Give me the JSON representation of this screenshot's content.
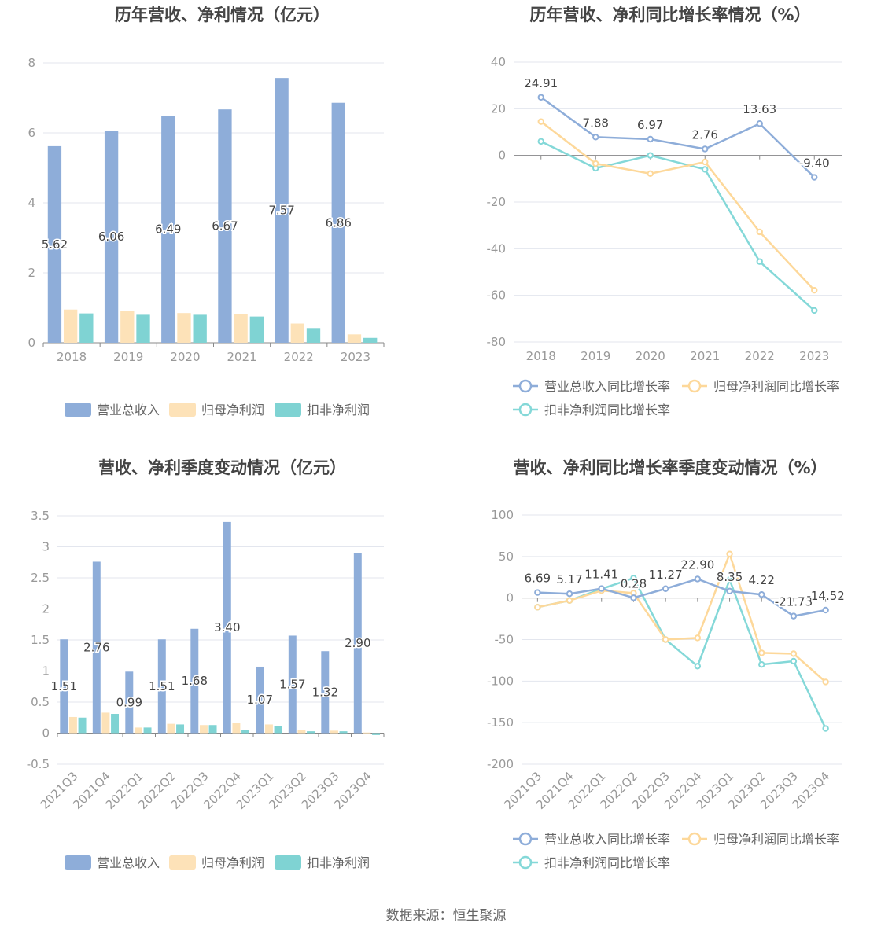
{
  "colors": {
    "revenue": "#8eadd9",
    "net_profit": "#fde2b8",
    "deducted_profit": "#7fd3d3",
    "revenue_line": "#8eadd9",
    "net_line": "#fdd89a",
    "deducted_line": "#84d8d8"
  },
  "footer": {
    "source": "数据来源：恒生聚源"
  },
  "chart_data": [
    {
      "id": "annual_values",
      "type": "bar",
      "title": "历年营收、净利情况（亿元）",
      "categories": [
        "2018",
        "2019",
        "2020",
        "2021",
        "2022",
        "2023"
      ],
      "series": [
        {
          "name": "营业总收入",
          "values": [
            5.62,
            6.06,
            6.49,
            6.67,
            7.57,
            6.86
          ]
        },
        {
          "name": "归母净利润",
          "values": [
            0.95,
            0.92,
            0.85,
            0.83,
            0.55,
            0.24
          ]
        },
        {
          "name": "扣非净利润",
          "values": [
            0.84,
            0.8,
            0.8,
            0.75,
            0.42,
            0.14
          ]
        }
      ],
      "data_labels": [
        "5.62",
        "6.06",
        "6.49",
        "6.67",
        "7.57",
        "6.86"
      ],
      "ylim": [
        0,
        8
      ],
      "yticks": [
        "0",
        "2",
        "4",
        "6",
        "8"
      ],
      "grid": true,
      "legend": "bottom"
    },
    {
      "id": "annual_growth",
      "type": "line",
      "title": "历年营收、净利同比增长率情况（%）",
      "categories": [
        "2018",
        "2019",
        "2020",
        "2021",
        "2022",
        "2023"
      ],
      "series": [
        {
          "name": "营业总收入同比增长率",
          "values": [
            24.91,
            7.88,
            6.97,
            2.76,
            13.63,
            -9.4
          ]
        },
        {
          "name": "归母净利润同比增长率",
          "values": [
            14.5,
            -3.5,
            -7.8,
            -2.8,
            -32.8,
            -57.8
          ]
        },
        {
          "name": "扣非净利润同比增长率",
          "values": [
            6.0,
            -5.5,
            0.0,
            -6.0,
            -45.5,
            -66.5
          ]
        }
      ],
      "data_labels": [
        "24.91",
        "7.88",
        "6.97",
        "2.76",
        "13.63",
        "-9.40"
      ],
      "ylim": [
        -80,
        40
      ],
      "yticks": [
        "-80",
        "-60",
        "-40",
        "-20",
        "0",
        "20",
        "40"
      ],
      "grid": true,
      "legend": "bottom"
    },
    {
      "id": "quarterly_values",
      "type": "bar",
      "title": "营收、净利季度变动情况（亿元）",
      "categories": [
        "2021Q3",
        "2021Q4",
        "2022Q1",
        "2022Q2",
        "2022Q3",
        "2022Q4",
        "2023Q1",
        "2023Q2",
        "2023Q3",
        "2023Q4"
      ],
      "series": [
        {
          "name": "营业总收入",
          "values": [
            1.51,
            2.76,
            0.99,
            1.51,
            1.68,
            3.4,
            1.07,
            1.57,
            1.32,
            2.9
          ]
        },
        {
          "name": "归母净利润",
          "values": [
            0.26,
            0.33,
            0.09,
            0.15,
            0.13,
            0.17,
            0.14,
            0.05,
            0.04,
            0.01
          ]
        },
        {
          "name": "扣非净利润",
          "values": [
            0.25,
            0.31,
            0.09,
            0.14,
            0.13,
            0.05,
            0.11,
            0.03,
            0.03,
            -0.03
          ]
        }
      ],
      "data_labels": [
        "1.51",
        "2.76",
        "0.99",
        "1.51",
        "1.68",
        "3.40",
        "1.07",
        "1.57",
        "1.32",
        "2.90"
      ],
      "ylim": [
        -0.5,
        3.5
      ],
      "yticks": [
        "-0.5",
        "0",
        "0.5",
        "1",
        "1.5",
        "2",
        "2.5",
        "3",
        "3.5"
      ],
      "grid": true,
      "legend": "bottom"
    },
    {
      "id": "quarterly_growth",
      "type": "line",
      "title": "营收、净利同比增长率季度变动情况（%）",
      "categories": [
        "2021Q3",
        "2021Q4",
        "2022Q1",
        "2022Q2",
        "2022Q3",
        "2022Q4",
        "2023Q1",
        "2023Q2",
        "2023Q3",
        "2023Q4"
      ],
      "series": [
        {
          "name": "营业总收入同比增长率",
          "values": [
            6.69,
            5.17,
            11.41,
            0.28,
            11.27,
            22.9,
            8.35,
            4.22,
            -21.73,
            -14.52
          ]
        },
        {
          "name": "归母净利润同比增长率",
          "values": [
            -11,
            -3,
            9,
            6,
            -50,
            -48,
            53,
            -66,
            -67,
            -101
          ]
        },
        {
          "name": "扣非净利润同比增长率",
          "values": [
            -11,
            -3,
            11,
            24,
            -50,
            -82,
            22,
            -80,
            -76,
            -157
          ]
        }
      ],
      "data_labels": [
        "6.69",
        "5.17",
        "11.41",
        "0.28",
        "11.27",
        "22.90",
        "8.35",
        "4.22",
        "-21.73",
        "-14.52"
      ],
      "ylim": [
        -200,
        100
      ],
      "yticks": [
        "-200",
        "-150",
        "-100",
        "-50",
        "0",
        "50",
        "100"
      ],
      "grid": true,
      "legend": "bottom"
    }
  ]
}
